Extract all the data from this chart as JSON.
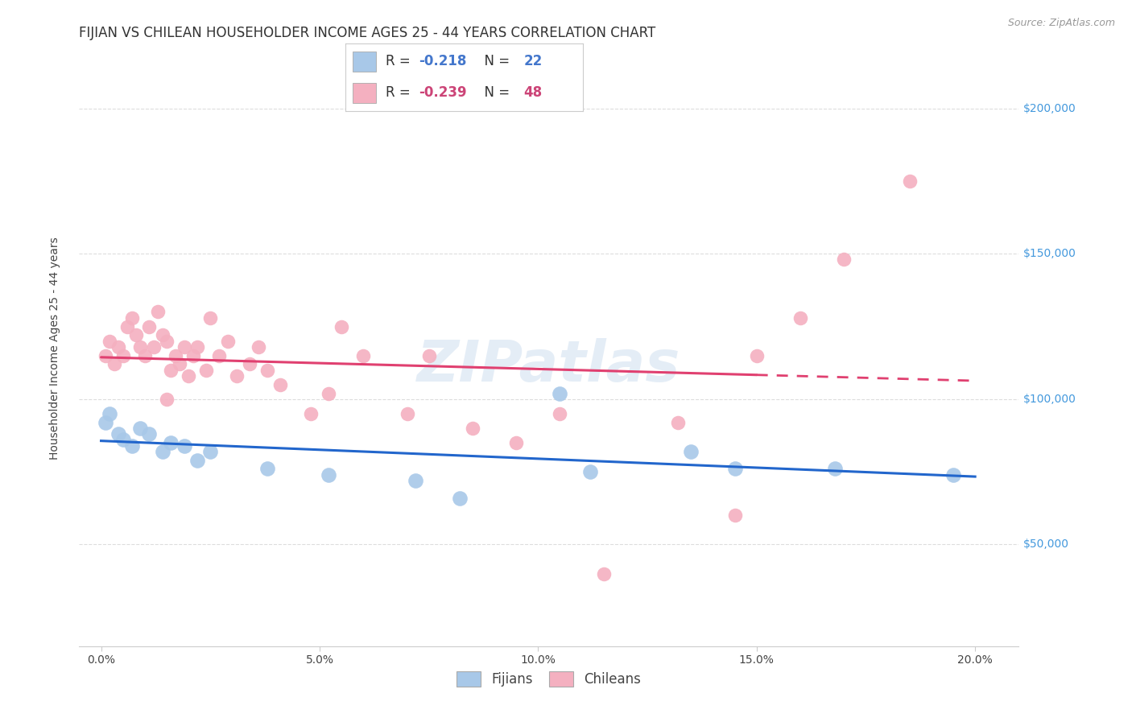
{
  "title": "FIJIAN VS CHILEAN HOUSEHOLDER INCOME AGES 25 - 44 YEARS CORRELATION CHART",
  "source": "Source: ZipAtlas.com",
  "xlabel_vals": [
    0.0,
    5.0,
    10.0,
    15.0,
    20.0
  ],
  "ylabel_labels": [
    "$50,000",
    "$100,000",
    "$150,000",
    "$200,000"
  ],
  "ylabel_vals": [
    50000,
    100000,
    150000,
    200000
  ],
  "ylabel_axis": "Householder Income Ages 25 - 44 years",
  "xlim": [
    -0.5,
    21.0
  ],
  "ylim": [
    15000,
    220000
  ],
  "fijians_R": -0.218,
  "fijians_N": 22,
  "chileans_R": -0.239,
  "chileans_N": 48,
  "fijian_color": "#a8c8e8",
  "chilean_color": "#f4b0c0",
  "fijian_line_color": "#2266cc",
  "chilean_line_color": "#e04070",
  "watermark": "ZIPatlas",
  "fijians_x": [
    0.1,
    0.2,
    0.4,
    0.5,
    0.7,
    0.9,
    1.1,
    1.4,
    1.6,
    1.9,
    2.2,
    2.5,
    3.8,
    5.2,
    7.2,
    8.2,
    10.5,
    11.2,
    13.5,
    14.5,
    16.8,
    19.5
  ],
  "fijians_y": [
    92000,
    95000,
    88000,
    86000,
    84000,
    90000,
    88000,
    82000,
    85000,
    84000,
    79000,
    82000,
    76000,
    74000,
    72000,
    66000,
    102000,
    75000,
    82000,
    76000,
    76000,
    74000
  ],
  "chileans_x": [
    0.1,
    0.2,
    0.3,
    0.4,
    0.5,
    0.6,
    0.7,
    0.8,
    0.9,
    1.0,
    1.1,
    1.2,
    1.3,
    1.4,
    1.5,
    1.6,
    1.7,
    1.8,
    1.9,
    2.0,
    2.1,
    2.2,
    2.4,
    2.5,
    2.7,
    2.9,
    3.1,
    3.4,
    3.6,
    3.8,
    4.1,
    4.8,
    5.2,
    5.5,
    6.0,
    7.0,
    7.5,
    8.5,
    9.5,
    10.5,
    11.5,
    13.2,
    14.5,
    15.0,
    16.0,
    17.0,
    18.5,
    1.5
  ],
  "chileans_y": [
    115000,
    120000,
    112000,
    118000,
    115000,
    125000,
    128000,
    122000,
    118000,
    115000,
    125000,
    118000,
    130000,
    122000,
    120000,
    110000,
    115000,
    112000,
    118000,
    108000,
    115000,
    118000,
    110000,
    128000,
    115000,
    120000,
    108000,
    112000,
    118000,
    110000,
    105000,
    95000,
    102000,
    125000,
    115000,
    95000,
    115000,
    90000,
    85000,
    95000,
    40000,
    92000,
    60000,
    115000,
    128000,
    148000,
    175000,
    100000
  ],
  "background_color": "#ffffff",
  "grid_color": "#dddddd",
  "title_fontsize": 12,
  "axis_label_fontsize": 10,
  "tick_fontsize": 10,
  "legend_fontsize": 12
}
